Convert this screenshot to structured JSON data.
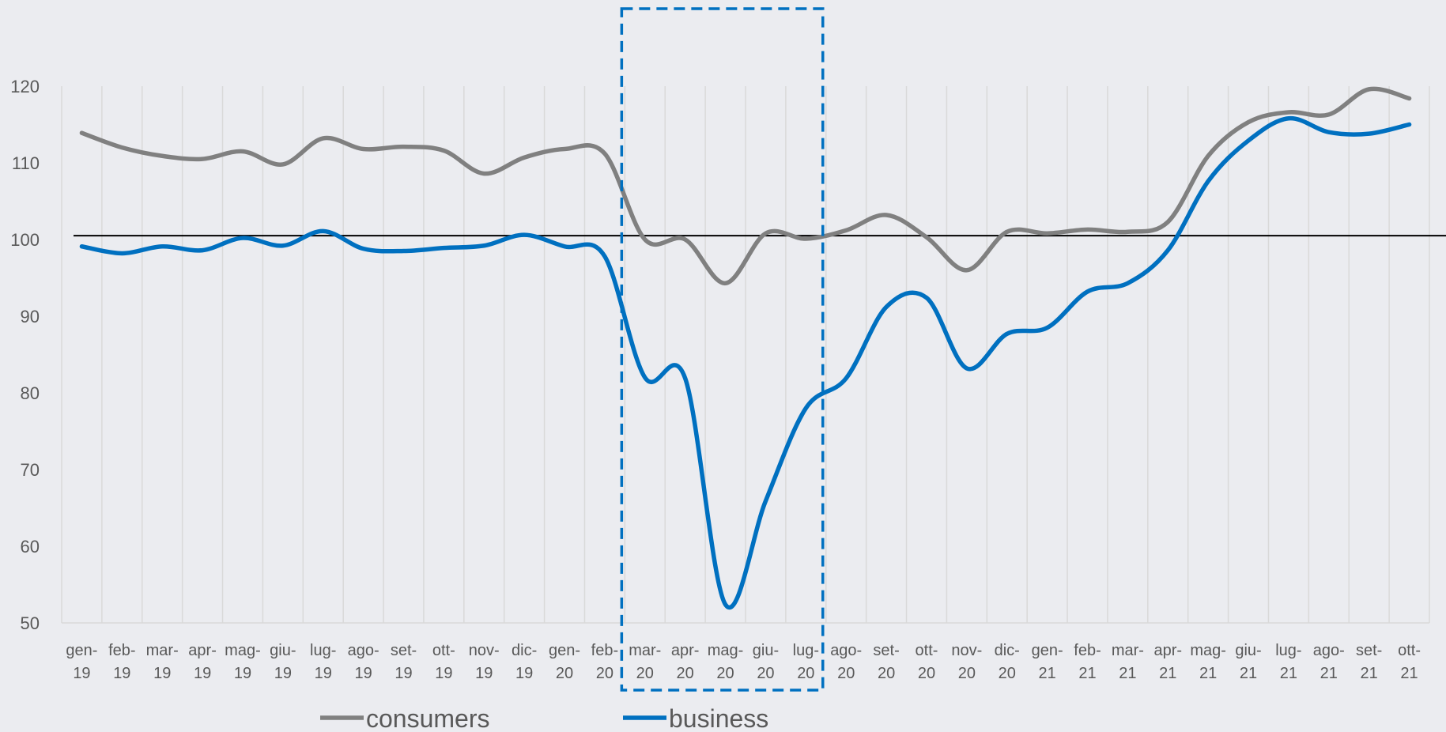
{
  "chart_data": {
    "type": "line",
    "title": "",
    "xlabel": "",
    "ylabel": "",
    "ylim": [
      50,
      120
    ],
    "yticks": [
      "50",
      "60",
      "70",
      "80",
      "90",
      "100",
      "110",
      "120"
    ],
    "grid": "vertical",
    "reference_line": 100.5,
    "categories": [
      [
        "gen-",
        "19"
      ],
      [
        "feb-",
        "19"
      ],
      [
        "mar-",
        "19"
      ],
      [
        "apr-",
        "19"
      ],
      [
        "mag-",
        "19"
      ],
      [
        "giu-",
        "19"
      ],
      [
        "lug-",
        "19"
      ],
      [
        "ago-",
        "19"
      ],
      [
        "set-",
        "19"
      ],
      [
        "ott-",
        "19"
      ],
      [
        "nov-",
        "19"
      ],
      [
        "dic-",
        "19"
      ],
      [
        "gen-",
        "20"
      ],
      [
        "feb-",
        "20"
      ],
      [
        "mar-",
        "20"
      ],
      [
        "apr-",
        "20"
      ],
      [
        "mag-",
        "20"
      ],
      [
        "giu-",
        "20"
      ],
      [
        "lug-",
        "20"
      ],
      [
        "ago-",
        "20"
      ],
      [
        "set-",
        "20"
      ],
      [
        "ott-",
        "20"
      ],
      [
        "nov-",
        "20"
      ],
      [
        "dic-",
        "20"
      ],
      [
        "gen-",
        "21"
      ],
      [
        "feb-",
        "21"
      ],
      [
        "mar-",
        "21"
      ],
      [
        "apr-",
        "21"
      ],
      [
        "mag-",
        "21"
      ],
      [
        "giu-",
        "21"
      ],
      [
        "lug-",
        "21"
      ],
      [
        "ago-",
        "21"
      ],
      [
        "set-",
        "21"
      ],
      [
        "ott-",
        "21"
      ]
    ],
    "series": [
      {
        "name": "consumers",
        "color": "#808080",
        "values": [
          113.9,
          112.0,
          110.9,
          110.5,
          111.5,
          109.8,
          113.2,
          111.8,
          112.1,
          111.6,
          108.6,
          110.7,
          111.8,
          111.2,
          100.0,
          100.0,
          94.3,
          100.8,
          100.1,
          101.2,
          103.2,
          100.3,
          96.0,
          101.0,
          100.8,
          101.3,
          101.0,
          102.3,
          110.9,
          115.3,
          116.6,
          116.3,
          119.6,
          118.4
        ]
      },
      {
        "name": "business",
        "color": "#0070c0",
        "values": [
          99.1,
          98.2,
          99.1,
          98.6,
          100.2,
          99.2,
          101.1,
          98.8,
          98.5,
          98.9,
          99.2,
          100.6,
          99.1,
          97.8,
          82.0,
          81.9,
          52.4,
          65.9,
          78.0,
          81.9,
          91.2,
          92.4,
          83.2,
          87.7,
          88.5,
          93.2,
          94.3,
          98.6,
          107.6,
          112.9,
          115.8,
          114.0,
          113.8,
          115.0
        ]
      }
    ],
    "highlight_range": [
      "mar-20",
      "lug-20"
    ],
    "highlight_color": "#0070c0",
    "legend_position": "bottom"
  }
}
